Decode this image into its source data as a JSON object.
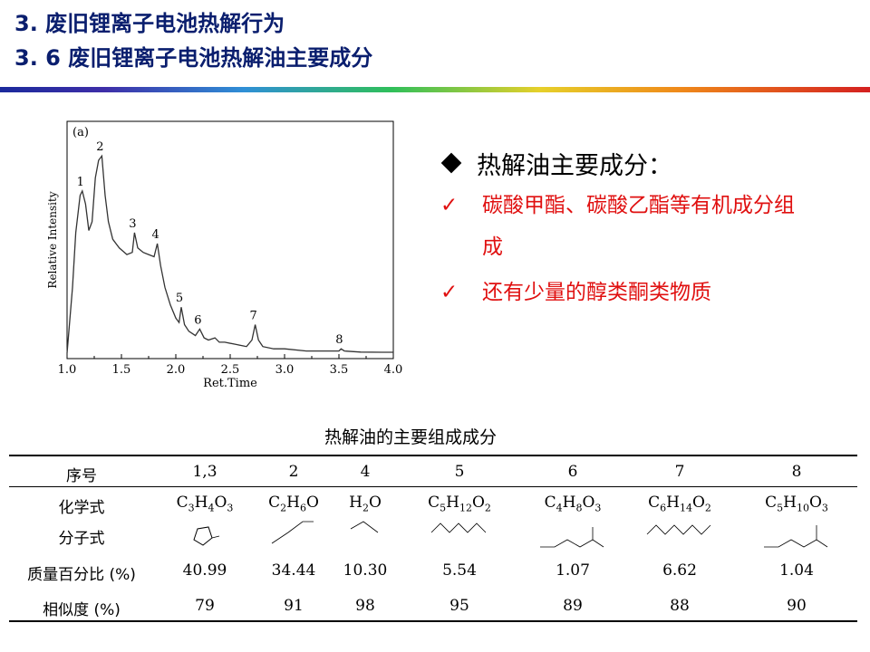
{
  "header": {
    "title_line1": "3. 废旧锂离子电池热解行为",
    "title_line2": "3. 6  废旧锂离子电池热解油主要成分"
  },
  "bullets": {
    "heading": "热解油主要成分：",
    "items": [
      "碳酸甲酯、碳酸乙酯等有机成分组成",
      "还有少量的醇类酮类物质"
    ]
  },
  "chart_data": {
    "type": "line",
    "panel_label": "(a)",
    "xlabel": "Ret.Time",
    "ylabel": "Relative Intensity",
    "xlim": [
      1.0,
      4.0
    ],
    "xticks": [
      "1.0",
      "1.5",
      "2.0",
      "2.5",
      "3.0",
      "3.5",
      "4.0"
    ],
    "peaks": [
      {
        "label": "1",
        "x": 1.14,
        "y": 0.74
      },
      {
        "label": "2",
        "x": 1.32,
        "y": 0.9
      },
      {
        "label": "3",
        "x": 1.62,
        "y": 0.55
      },
      {
        "label": "4",
        "x": 1.83,
        "y": 0.5
      },
      {
        "label": "5",
        "x": 2.05,
        "y": 0.21
      },
      {
        "label": "6",
        "x": 2.22,
        "y": 0.11
      },
      {
        "label": "7",
        "x": 2.73,
        "y": 0.13
      },
      {
        "label": "8",
        "x": 3.52,
        "y": 0.02
      }
    ],
    "series": [
      {
        "x": [
          1.0,
          1.05,
          1.08,
          1.12,
          1.14,
          1.17,
          1.2,
          1.23,
          1.26,
          1.29,
          1.32,
          1.35,
          1.38,
          1.42,
          1.48,
          1.55,
          1.6,
          1.62,
          1.65,
          1.7,
          1.75,
          1.8,
          1.83,
          1.86,
          1.9,
          1.95,
          2.0,
          2.03,
          2.05,
          2.08,
          2.12,
          2.18,
          2.22,
          2.26,
          2.3,
          2.36,
          2.4,
          2.45,
          2.55,
          2.65,
          2.7,
          2.73,
          2.76,
          2.8,
          2.9,
          3.0,
          3.2,
          3.4,
          3.5,
          3.52,
          3.55,
          3.7,
          3.9,
          4.0
        ],
        "y": [
          0.0,
          0.3,
          0.55,
          0.72,
          0.74,
          0.68,
          0.56,
          0.6,
          0.8,
          0.88,
          0.9,
          0.72,
          0.6,
          0.52,
          0.48,
          0.45,
          0.46,
          0.55,
          0.48,
          0.46,
          0.45,
          0.44,
          0.5,
          0.4,
          0.3,
          0.22,
          0.16,
          0.14,
          0.21,
          0.13,
          0.1,
          0.08,
          0.11,
          0.07,
          0.06,
          0.07,
          0.05,
          0.05,
          0.04,
          0.03,
          0.06,
          0.13,
          0.06,
          0.03,
          0.02,
          0.02,
          0.01,
          0.01,
          0.01,
          0.02,
          0.01,
          0.005,
          0.004,
          0.004
        ]
      }
    ]
  },
  "table": {
    "caption": "热解油的主要组成成分",
    "row_labels": {
      "index": "序号",
      "formula": "化学式",
      "molecular": "分子式",
      "mass": "质量百分比 (%)",
      "similarity": "相似度 (%)"
    },
    "columns": [
      {
        "index": "1,3",
        "formula": [
          [
            "C",
            "3"
          ],
          [
            "H",
            "4"
          ],
          [
            "O",
            "3"
          ]
        ],
        "mass": "40.99",
        "similarity": "79"
      },
      {
        "index": "2",
        "formula": [
          [
            "C",
            "2"
          ],
          [
            "H",
            "6"
          ],
          [
            "O",
            ""
          ]
        ],
        "mass": "34.44",
        "similarity": "91"
      },
      {
        "index": "4",
        "formula": [
          [
            "H",
            "2"
          ],
          [
            "O",
            ""
          ]
        ],
        "mass": "10.30",
        "similarity": "98"
      },
      {
        "index": "5",
        "formula": [
          [
            "C",
            "5"
          ],
          [
            "H",
            "12"
          ],
          [
            "O",
            "2"
          ]
        ],
        "mass": "5.54",
        "similarity": "95"
      },
      {
        "index": "6",
        "formula": [
          [
            "C",
            "4"
          ],
          [
            "H",
            "8"
          ],
          [
            "O",
            "3"
          ]
        ],
        "mass": "1.07",
        "similarity": "89"
      },
      {
        "index": "7",
        "formula": [
          [
            "C",
            "6"
          ],
          [
            "H",
            "14"
          ],
          [
            "O",
            "2"
          ]
        ],
        "mass": "6.62",
        "similarity": "88"
      },
      {
        "index": "8",
        "formula": [
          [
            "C",
            "5"
          ],
          [
            "H",
            "10"
          ],
          [
            "O",
            "3"
          ]
        ],
        "mass": "1.04",
        "similarity": "90"
      }
    ]
  }
}
